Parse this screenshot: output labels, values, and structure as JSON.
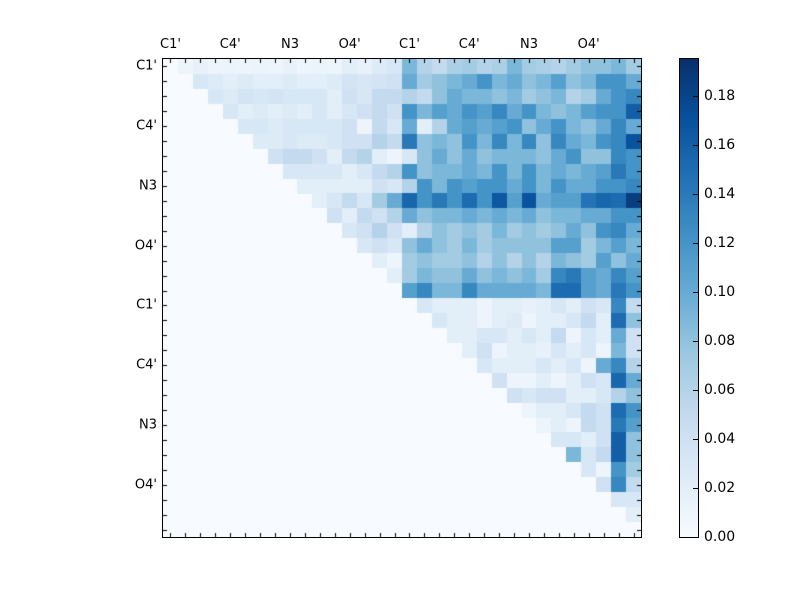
{
  "figure": {
    "background_color": "#ffffff"
  },
  "chart_data": {
    "type": "heatmap",
    "title": "",
    "xlabel": "",
    "ylabel": "",
    "grid": false,
    "legend_position": "colorbar-right",
    "size": 32,
    "x_tick_labels": [
      "C1'",
      "C4'",
      "N3",
      "O4'",
      "C1'",
      "C4'",
      "N3",
      "O4'"
    ],
    "y_tick_labels": [
      "C1'",
      "C4'",
      "N3",
      "O4'",
      "C1'",
      "C4'",
      "N3",
      "O4'"
    ],
    "tick_label_positions": [
      0,
      4,
      8,
      12,
      16,
      20,
      24,
      28
    ],
    "vmin": 0.0,
    "vmax": 0.195,
    "colormap": "Blues",
    "colormap_anchors": [
      "#f7fbff",
      "#deebf7",
      "#c6dbef",
      "#9ecae1",
      "#6baed6",
      "#4292c6",
      "#2171b5",
      "#08519c",
      "#08306b"
    ],
    "colorbar_tick_labels": [
      "0.00",
      "0.02",
      "0.04",
      "0.06",
      "0.08",
      "0.10",
      "0.12",
      "0.14",
      "0.16",
      "0.18"
    ],
    "colorbar_tick_values": [
      0.0,
      0.02,
      0.04,
      0.06,
      0.08,
      0.1,
      0.12,
      0.14,
      0.16,
      0.18
    ],
    "matrix": [
      [
        0,
        0.01,
        0.015,
        0.01,
        0.012,
        0.01,
        0.012,
        0.01,
        0.015,
        0.01,
        0.012,
        0.01,
        0.02,
        0.015,
        0.025,
        0.03,
        0.09,
        0.06,
        0.05,
        0.065,
        0.07,
        0.06,
        0.065,
        0.09,
        0.07,
        0.065,
        0.06,
        0.07,
        0.08,
        0.08,
        0.09,
        0.07
      ],
      [
        0,
        0,
        0.03,
        0.025,
        0.02,
        0.025,
        0.02,
        0.02,
        0.025,
        0.02,
        0.02,
        0.025,
        0.035,
        0.03,
        0.035,
        0.04,
        0.1,
        0.07,
        0.08,
        0.09,
        0.1,
        0.12,
        0.09,
        0.1,
        0.08,
        0.09,
        0.11,
        0.08,
        0.09,
        0.12,
        0.12,
        0.1
      ],
      [
        0,
        0,
        0,
        0.03,
        0.025,
        0.035,
        0.03,
        0.035,
        0.03,
        0.03,
        0.03,
        0.02,
        0.04,
        0.03,
        0.05,
        0.05,
        0.06,
        0.05,
        0.08,
        0.1,
        0.09,
        0.09,
        0.08,
        0.09,
        0.07,
        0.08,
        0.09,
        0.06,
        0.07,
        0.1,
        0.12,
        0.13
      ],
      [
        0,
        0,
        0,
        0,
        0.03,
        0.02,
        0.025,
        0.02,
        0.025,
        0.02,
        0.03,
        0.02,
        0.03,
        0.04,
        0.05,
        0.04,
        0.12,
        0.09,
        0.11,
        0.1,
        0.12,
        0.11,
        0.13,
        0.1,
        0.12,
        0.09,
        0.08,
        0.09,
        0.11,
        0.12,
        0.12,
        0.16
      ],
      [
        0,
        0,
        0,
        0,
        0,
        0.03,
        0.03,
        0.025,
        0.03,
        0.03,
        0.03,
        0.03,
        0.04,
        0.01,
        0.05,
        0.03,
        0.1,
        0.02,
        0.06,
        0.1,
        0.11,
        0.1,
        0.11,
        0.12,
        0.08,
        0.1,
        0.12,
        0.09,
        0.08,
        0.1,
        0.13,
        0.1
      ],
      [
        0,
        0,
        0,
        0,
        0,
        0,
        0.025,
        0.025,
        0.03,
        0.025,
        0.025,
        0.03,
        0.04,
        0.04,
        0.06,
        0.05,
        0.14,
        0.08,
        0.09,
        0.08,
        0.12,
        0.09,
        0.13,
        0.09,
        0.13,
        0.08,
        0.13,
        0.1,
        0.09,
        0.12,
        0.13,
        0.17
      ],
      [
        0,
        0,
        0,
        0,
        0,
        0,
        0,
        0.04,
        0.05,
        0.05,
        0.04,
        0.02,
        0.05,
        0.06,
        0.02,
        0.01,
        0.03,
        0.08,
        0.1,
        0.08,
        0.1,
        0.08,
        0.09,
        0.09,
        0.09,
        0.08,
        0.1,
        0.12,
        0.08,
        0.08,
        0.13,
        0.12
      ],
      [
        0,
        0,
        0,
        0,
        0,
        0,
        0,
        0,
        0.03,
        0.03,
        0.03,
        0.03,
        0.02,
        0.03,
        0.05,
        0.06,
        0.12,
        0.08,
        0.09,
        0.09,
        0.1,
        0.09,
        0.12,
        0.09,
        0.12,
        0.09,
        0.1,
        0.09,
        0.1,
        0.11,
        0.14,
        0.12
      ],
      [
        0,
        0,
        0,
        0,
        0,
        0,
        0,
        0,
        0,
        0.02,
        0.02,
        0.02,
        0.02,
        0.02,
        0.04,
        0.03,
        0.06,
        0.12,
        0.09,
        0.12,
        0.11,
        0.12,
        0.12,
        0.1,
        0.12,
        0.09,
        0.12,
        0.1,
        0.1,
        0.12,
        0.12,
        0.13
      ],
      [
        0,
        0,
        0,
        0,
        0,
        0,
        0,
        0,
        0,
        0,
        0.02,
        0.03,
        0.05,
        0.03,
        0.07,
        0.1,
        0.155,
        0.12,
        0.14,
        0.12,
        0.15,
        0.12,
        0.165,
        0.11,
        0.17,
        0.1,
        0.11,
        0.11,
        0.145,
        0.155,
        0.15,
        0.185
      ],
      [
        0,
        0,
        0,
        0,
        0,
        0,
        0,
        0,
        0,
        0,
        0,
        0.04,
        0.02,
        0.05,
        0.04,
        0.06,
        0.1,
        0.08,
        0.09,
        0.09,
        0.1,
        0.09,
        0.1,
        0.09,
        0.1,
        0.08,
        0.09,
        0.09,
        0.1,
        0.1,
        0.12,
        0.12
      ],
      [
        0,
        0,
        0,
        0,
        0,
        0,
        0,
        0,
        0,
        0,
        0,
        0,
        0.03,
        0.04,
        0.06,
        0.04,
        0.02,
        0.06,
        0.08,
        0.07,
        0.08,
        0.07,
        0.09,
        0.07,
        0.08,
        0.07,
        0.08,
        0.1,
        0.08,
        0.12,
        0.13,
        0.1
      ],
      [
        0,
        0,
        0,
        0,
        0,
        0,
        0,
        0,
        0,
        0,
        0,
        0,
        0,
        0.03,
        0.04,
        0.03,
        0.08,
        0.1,
        0.08,
        0.07,
        0.09,
        0.07,
        0.08,
        0.08,
        0.08,
        0.08,
        0.11,
        0.11,
        0.07,
        0.09,
        0.11,
        0.09
      ],
      [
        0,
        0,
        0,
        0,
        0,
        0,
        0,
        0,
        0,
        0,
        0,
        0,
        0,
        0,
        0.02,
        0.01,
        0.07,
        0.08,
        0.07,
        0.07,
        0.08,
        0.06,
        0.08,
        0.06,
        0.08,
        0.06,
        0.09,
        0.08,
        0.07,
        0.11,
        0.08,
        0.1
      ],
      [
        0,
        0,
        0,
        0,
        0,
        0,
        0,
        0,
        0,
        0,
        0,
        0,
        0,
        0,
        0,
        0.02,
        0.07,
        0.09,
        0.08,
        0.08,
        0.1,
        0.08,
        0.09,
        0.08,
        0.09,
        0.07,
        0.13,
        0.14,
        0.11,
        0.1,
        0.13,
        0.11
      ],
      [
        0,
        0,
        0,
        0,
        0,
        0,
        0,
        0,
        0,
        0,
        0,
        0,
        0,
        0,
        0,
        0,
        0.11,
        0.13,
        0.09,
        0.09,
        0.13,
        0.1,
        0.1,
        0.1,
        0.1,
        0.09,
        0.15,
        0.15,
        0.11,
        0.1,
        0.14,
        0.12
      ],
      [
        0,
        0,
        0,
        0,
        0,
        0,
        0,
        0,
        0,
        0,
        0,
        0,
        0,
        0,
        0,
        0,
        0,
        0.03,
        0.02,
        0.02,
        0.02,
        0.01,
        0.02,
        0.02,
        0.015,
        0.02,
        0.03,
        0.02,
        0.04,
        0.03,
        0.13,
        0.05
      ],
      [
        0,
        0,
        0,
        0,
        0,
        0,
        0,
        0,
        0,
        0,
        0,
        0,
        0,
        0,
        0,
        0,
        0,
        0,
        0.03,
        0.02,
        0.02,
        0.01,
        0.02,
        0.025,
        0.01,
        0.02,
        0.02,
        0.03,
        0.05,
        0.02,
        0.15,
        0.08
      ],
      [
        0,
        0,
        0,
        0,
        0,
        0,
        0,
        0,
        0,
        0,
        0,
        0,
        0,
        0,
        0,
        0,
        0,
        0,
        0,
        0.02,
        0.02,
        0.03,
        0.03,
        0.02,
        0.03,
        0.02,
        0.05,
        0.01,
        0.03,
        0.02,
        0.1,
        0.04
      ],
      [
        0,
        0,
        0,
        0,
        0,
        0,
        0,
        0,
        0,
        0,
        0,
        0,
        0,
        0,
        0,
        0,
        0,
        0,
        0,
        0,
        0.02,
        0.04,
        0.01,
        0.02,
        0.02,
        0.015,
        0.03,
        0.02,
        0.03,
        0.01,
        0.09,
        0.04
      ],
      [
        0,
        0,
        0,
        0,
        0,
        0,
        0,
        0,
        0,
        0,
        0,
        0,
        0,
        0,
        0,
        0,
        0,
        0,
        0,
        0,
        0,
        0.03,
        0.02,
        0.02,
        0.02,
        0.03,
        0.02,
        0.03,
        0.01,
        0.1,
        0.13,
        0.06
      ],
      [
        0,
        0,
        0,
        0,
        0,
        0,
        0,
        0,
        0,
        0,
        0,
        0,
        0,
        0,
        0,
        0,
        0,
        0,
        0,
        0,
        0,
        0,
        0.04,
        0.01,
        0.01,
        0.02,
        0.01,
        0.02,
        0.04,
        0.03,
        0.155,
        0.1
      ],
      [
        0,
        0,
        0,
        0,
        0,
        0,
        0,
        0,
        0,
        0,
        0,
        0,
        0,
        0,
        0,
        0,
        0,
        0,
        0,
        0,
        0,
        0,
        0,
        0.04,
        0.03,
        0.04,
        0.04,
        0.02,
        0.02,
        0.03,
        0.06,
        0.08
      ],
      [
        0,
        0,
        0,
        0,
        0,
        0,
        0,
        0,
        0,
        0,
        0,
        0,
        0,
        0,
        0,
        0,
        0,
        0,
        0,
        0,
        0,
        0,
        0,
        0,
        0.01,
        0.02,
        0.02,
        0.03,
        0.05,
        0.04,
        0.15,
        0.12
      ],
      [
        0,
        0,
        0,
        0,
        0,
        0,
        0,
        0,
        0,
        0,
        0,
        0,
        0,
        0,
        0,
        0,
        0,
        0,
        0,
        0,
        0,
        0,
        0,
        0,
        0,
        0.01,
        0.02,
        0.01,
        0.05,
        0.04,
        0.14,
        0.11
      ],
      [
        0,
        0,
        0,
        0,
        0,
        0,
        0,
        0,
        0,
        0,
        0,
        0,
        0,
        0,
        0,
        0,
        0,
        0,
        0,
        0,
        0,
        0,
        0,
        0,
        0,
        0,
        0.03,
        0.03,
        0.02,
        0.04,
        0.16,
        0.08
      ],
      [
        0,
        0,
        0,
        0,
        0,
        0,
        0,
        0,
        0,
        0,
        0,
        0,
        0,
        0,
        0,
        0,
        0,
        0,
        0,
        0,
        0,
        0,
        0,
        0,
        0,
        0,
        0,
        0.09,
        0.03,
        0.05,
        0.16,
        0.08
      ],
      [
        0,
        0,
        0,
        0,
        0,
        0,
        0,
        0,
        0,
        0,
        0,
        0,
        0,
        0,
        0,
        0,
        0,
        0,
        0,
        0,
        0,
        0,
        0,
        0,
        0,
        0,
        0,
        0,
        0.03,
        0.01,
        0.12,
        0.07
      ],
      [
        0,
        0,
        0,
        0,
        0,
        0,
        0,
        0,
        0,
        0,
        0,
        0,
        0,
        0,
        0,
        0,
        0,
        0,
        0,
        0,
        0,
        0,
        0,
        0,
        0,
        0,
        0,
        0,
        0,
        0.04,
        0.13,
        0.05
      ],
      [
        0,
        0,
        0,
        0,
        0,
        0,
        0,
        0,
        0,
        0,
        0,
        0,
        0,
        0,
        0,
        0,
        0,
        0,
        0,
        0,
        0,
        0,
        0,
        0,
        0,
        0,
        0,
        0,
        0,
        0,
        0.03,
        0.03
      ],
      [
        0,
        0,
        0,
        0,
        0,
        0,
        0,
        0,
        0,
        0,
        0,
        0,
        0,
        0,
        0,
        0,
        0,
        0,
        0,
        0,
        0,
        0,
        0,
        0,
        0,
        0,
        0,
        0,
        0,
        0,
        0,
        0.02
      ],
      [
        0,
        0,
        0,
        0,
        0,
        0,
        0,
        0,
        0,
        0,
        0,
        0,
        0,
        0,
        0,
        0,
        0,
        0,
        0,
        0,
        0,
        0,
        0,
        0,
        0,
        0,
        0,
        0,
        0,
        0,
        0,
        0
      ]
    ]
  }
}
